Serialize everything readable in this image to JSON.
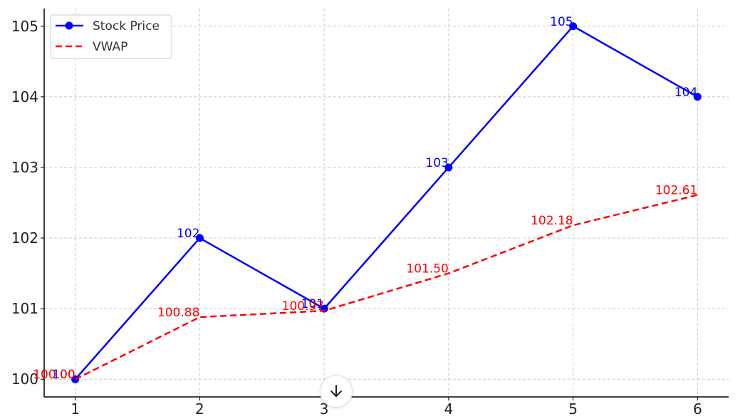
{
  "chart_data": {
    "type": "line",
    "title": "",
    "xlabel": "",
    "ylabel": "",
    "x": [
      1,
      2,
      3,
      4,
      5,
      6
    ],
    "xlim": [
      0.75,
      6.25
    ],
    "ylim": [
      99.75,
      105.25
    ],
    "x_ticks": [
      "1",
      "2",
      "3",
      "4",
      "5",
      "6"
    ],
    "y_ticks": [
      "100",
      "101",
      "102",
      "103",
      "104",
      "105"
    ],
    "grid": true,
    "legend_position": "top-left",
    "series": [
      {
        "name": "Stock Price",
        "color": "#0000ff",
        "style": "solid",
        "marker": "circle",
        "values": [
          100,
          102,
          101,
          103,
          105,
          104
        ],
        "labels": [
          "100",
          "102",
          "101",
          "103",
          "105",
          "104"
        ]
      },
      {
        "name": "VWAP",
        "color": "#ff0000",
        "style": "dashed",
        "marker": "none",
        "values": [
          100.0,
          100.88,
          100.97,
          101.5,
          102.18,
          102.61
        ],
        "labels": [
          "100.00",
          "100.88",
          "100.97",
          "101.50",
          "102.18",
          "102.61"
        ]
      }
    ]
  },
  "ui": {
    "scroll_button_icon": "arrow-down-icon"
  }
}
